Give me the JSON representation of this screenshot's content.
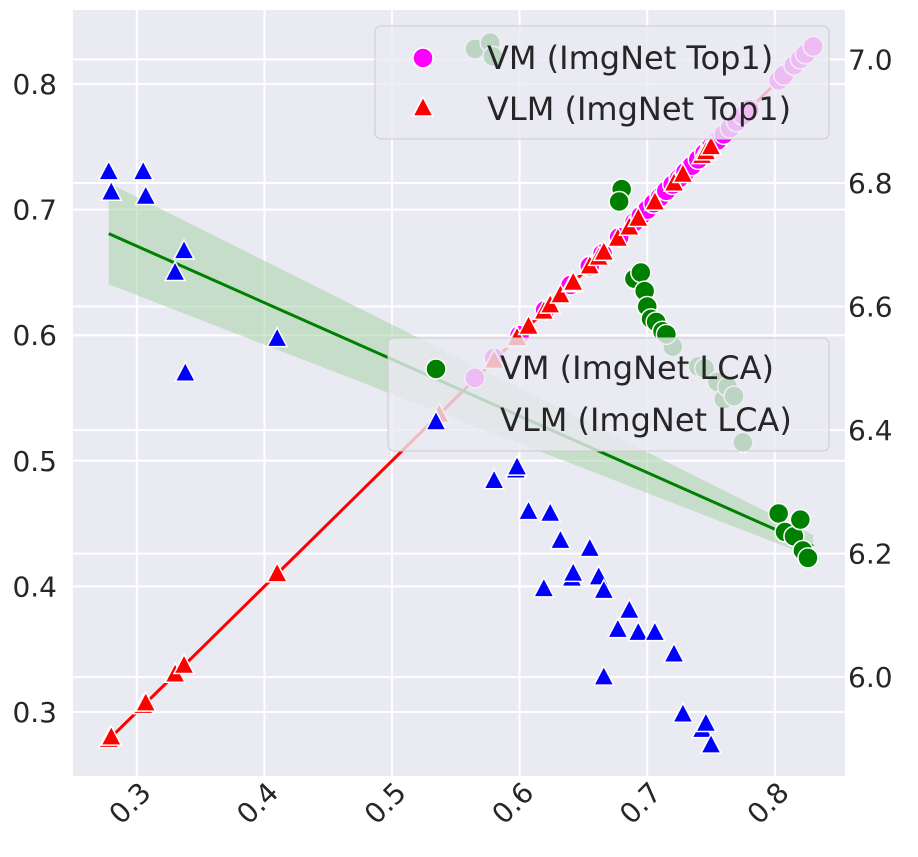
{
  "chart_data": {
    "type": "scatter",
    "x_axis": {
      "range": [
        0.25,
        0.855
      ],
      "ticks": [
        0.3,
        0.4,
        0.5,
        0.6,
        0.7,
        0.8
      ]
    },
    "y_left": {
      "range": [
        0.249,
        0.859
      ],
      "ticks": [
        0.3,
        0.4,
        0.5,
        0.6,
        0.7,
        0.8
      ]
    },
    "y_right": {
      "range": [
        5.84,
        7.08
      ],
      "ticks": [
        6.0,
        6.2,
        6.4,
        6.6,
        6.8,
        7.0
      ]
    },
    "grid": true,
    "legends": [
      {
        "placement": "top-right",
        "entries": [
          "VM (ImgNet Top1)",
          "VLM (ImgNet Top1)"
        ]
      },
      {
        "placement": "center-right",
        "entries": [
          "VM (ImgNet LCA)",
          "VLM (ImgNet LCA)"
        ]
      }
    ],
    "series": [
      {
        "name": "VM (ImgNet Top1)",
        "axis": "left",
        "marker": "circle",
        "color": "#ff00ff",
        "points": [
          [
            0.565,
            0.566
          ],
          [
            0.58,
            0.582
          ],
          [
            0.6,
            0.6
          ],
          [
            0.62,
            0.62
          ],
          [
            0.64,
            0.64
          ],
          [
            0.655,
            0.655
          ],
          [
            0.665,
            0.665
          ],
          [
            0.678,
            0.678
          ],
          [
            0.69,
            0.69
          ],
          [
            0.695,
            0.695
          ],
          [
            0.7,
            0.7
          ],
          [
            0.705,
            0.705
          ],
          [
            0.71,
            0.71
          ],
          [
            0.715,
            0.715
          ],
          [
            0.72,
            0.72
          ],
          [
            0.725,
            0.725
          ],
          [
            0.73,
            0.73
          ],
          [
            0.735,
            0.735
          ],
          [
            0.74,
            0.74
          ],
          [
            0.745,
            0.745
          ],
          [
            0.75,
            0.75
          ],
          [
            0.755,
            0.755
          ],
          [
            0.76,
            0.76
          ],
          [
            0.765,
            0.765
          ],
          [
            0.77,
            0.77
          ],
          [
            0.775,
            0.775
          ],
          [
            0.78,
            0.78
          ],
          [
            0.803,
            0.803
          ],
          [
            0.807,
            0.807
          ],
          [
            0.815,
            0.815
          ],
          [
            0.82,
            0.82
          ],
          [
            0.824,
            0.824
          ],
          [
            0.83,
            0.83
          ]
        ]
      },
      {
        "name": "VLM (ImgNet Top1)",
        "axis": "left",
        "marker": "triangle",
        "color": "#ff0000",
        "points": [
          [
            0.278,
            0.278
          ],
          [
            0.28,
            0.28
          ],
          [
            0.305,
            0.305
          ],
          [
            0.307,
            0.307
          ],
          [
            0.33,
            0.33
          ],
          [
            0.337,
            0.337
          ],
          [
            0.41,
            0.41
          ],
          [
            0.537,
            0.537
          ],
          [
            0.58,
            0.58
          ],
          [
            0.597,
            0.597
          ],
          [
            0.598,
            0.598
          ],
          [
            0.607,
            0.607
          ],
          [
            0.619,
            0.619
          ],
          [
            0.624,
            0.624
          ],
          [
            0.632,
            0.632
          ],
          [
            0.641,
            0.641
          ],
          [
            0.642,
            0.642
          ],
          [
            0.655,
            0.655
          ],
          [
            0.662,
            0.662
          ],
          [
            0.666,
            0.666
          ],
          [
            0.677,
            0.677
          ],
          [
            0.686,
            0.686
          ],
          [
            0.693,
            0.693
          ],
          [
            0.706,
            0.706
          ],
          [
            0.721,
            0.721
          ],
          [
            0.728,
            0.728
          ],
          [
            0.743,
            0.743
          ],
          [
            0.746,
            0.746
          ],
          [
            0.75,
            0.75
          ]
        ]
      },
      {
        "name": "VM (ImgNet LCA)",
        "axis": "right",
        "marker": "circle",
        "color": "#008000",
        "points": [
          [
            0.565,
            7.017
          ],
          [
            0.577,
            7.027
          ],
          [
            0.579,
            7.005
          ],
          [
            0.68,
            6.79
          ],
          [
            0.678,
            6.77
          ],
          [
            0.69,
            6.645
          ],
          [
            0.695,
            6.655
          ],
          [
            0.698,
            6.625
          ],
          [
            0.7,
            6.6
          ],
          [
            0.703,
            6.58
          ],
          [
            0.707,
            6.575
          ],
          [
            0.712,
            6.56
          ],
          [
            0.72,
            6.535
          ],
          [
            0.715,
            6.555
          ],
          [
            0.74,
            6.503
          ],
          [
            0.745,
            6.5
          ],
          [
            0.755,
            6.478
          ],
          [
            0.76,
            6.45
          ],
          [
            0.763,
            6.47
          ],
          [
            0.768,
            6.455
          ],
          [
            0.775,
            6.38
          ],
          [
            0.803,
            6.265
          ],
          [
            0.808,
            6.235
          ],
          [
            0.815,
            6.228
          ],
          [
            0.82,
            6.255
          ],
          [
            0.822,
            6.205
          ],
          [
            0.826,
            6.193
          ]
        ]
      },
      {
        "name": "VLM (ImgNet LCA)",
        "axis": "right",
        "marker": "triangle",
        "color": "#0000ff",
        "points": [
          [
            0.278,
            6.818
          ],
          [
            0.28,
            6.785
          ],
          [
            0.305,
            6.818
          ],
          [
            0.307,
            6.778
          ],
          [
            0.33,
            6.655
          ],
          [
            0.337,
            6.69
          ],
          [
            0.338,
            6.492
          ],
          [
            0.41,
            6.548
          ],
          [
            0.537,
            6.425
          ],
          [
            0.58,
            6.318
          ],
          [
            0.597,
            6.335
          ],
          [
            0.598,
            6.34
          ],
          [
            0.607,
            6.268
          ],
          [
            0.619,
            6.143
          ],
          [
            0.624,
            6.265
          ],
          [
            0.632,
            6.221
          ],
          [
            0.641,
            6.16
          ],
          [
            0.642,
            6.168
          ],
          [
            0.655,
            6.208
          ],
          [
            0.662,
            6.162
          ],
          [
            0.666,
            6.14
          ],
          [
            0.666,
            6.0
          ],
          [
            0.677,
            6.077
          ],
          [
            0.686,
            6.108
          ],
          [
            0.693,
            6.072
          ],
          [
            0.706,
            6.072
          ],
          [
            0.721,
            6.037
          ],
          [
            0.728,
            5.94
          ],
          [
            0.743,
            5.915
          ],
          [
            0.746,
            5.925
          ],
          [
            0.75,
            5.89
          ]
        ]
      }
    ],
    "fits": [
      {
        "series": "VLM (ImgNet Top1)",
        "axis": "left",
        "color": "#ff0000",
        "line": [
          [
            0.278,
            0.278
          ],
          [
            0.83,
            0.83
          ]
        ]
      },
      {
        "series": "VM (ImgNet LCA)",
        "axis": "right",
        "color": "#008000",
        "line": [
          [
            0.278,
            6.718
          ],
          [
            0.83,
            6.212
          ]
        ],
        "band_halfwidth": [
          0.082,
          0.018
        ],
        "band_color": "#a8d1a8"
      }
    ]
  }
}
